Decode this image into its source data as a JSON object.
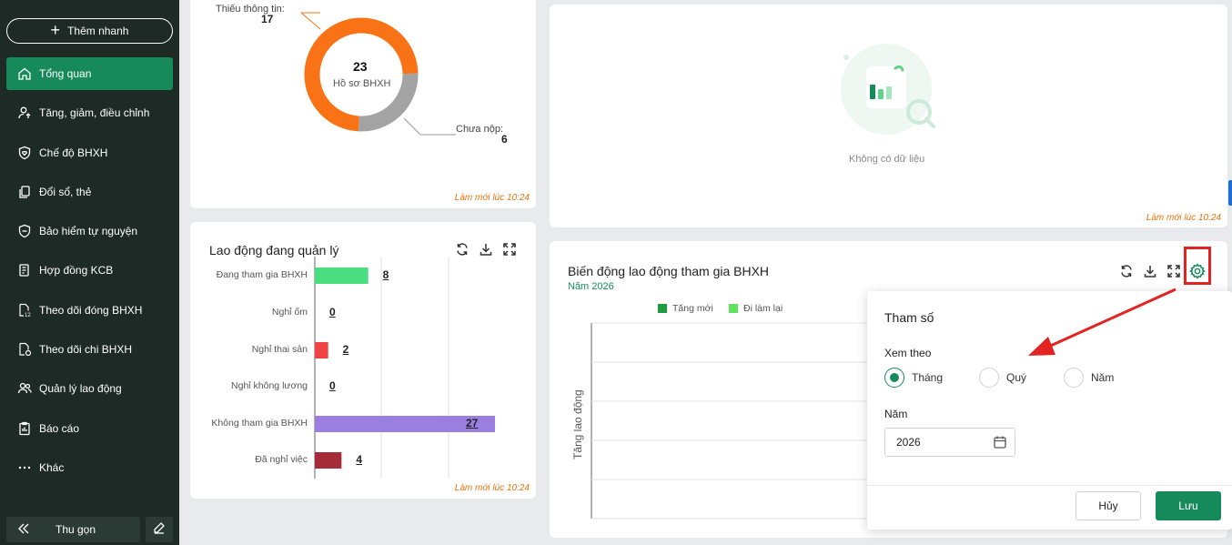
{
  "sidebar": {
    "quick_add": "Thêm nhanh",
    "items": [
      {
        "label": "Tổng quan",
        "icon": "home-icon"
      },
      {
        "label": "Tăng, giảm, điều chỉnh",
        "icon": "user-arrow-icon"
      },
      {
        "label": "Chế độ BHXH",
        "icon": "shield-heart-icon"
      },
      {
        "label": "Đổi sổ, thẻ",
        "icon": "documents-icon"
      },
      {
        "label": "Bảo hiểm tự nguyện",
        "icon": "shield-icon"
      },
      {
        "label": "Hợp đồng KCB",
        "icon": "contract-icon"
      },
      {
        "label": "Theo dõi đóng BHXH",
        "icon": "document-12-icon"
      },
      {
        "label": "Theo dõi chi BHXH",
        "icon": "document-money-icon"
      },
      {
        "label": "Quản lý lao động",
        "icon": "users-icon"
      },
      {
        "label": "Báo cáo",
        "icon": "report-icon"
      },
      {
        "label": "Khác",
        "icon": "more-icon"
      }
    ],
    "collapse": "Thu gọn"
  },
  "donut_card": {
    "center_value": "23",
    "center_label": "Hồ sơ BHXH",
    "label_missing": "Thiếu thông tin:",
    "value_missing": "17",
    "label_not_submitted": "Chưa nộp:",
    "value_not_submitted": "6",
    "refreshed": "Làm mới lúc 10:24",
    "colors": {
      "missing": "#f97316",
      "not_submitted": "#a3a3a3"
    },
    "values": [
      17,
      6
    ]
  },
  "empty_card": {
    "text": "Không có dữ liệu",
    "refreshed": "Làm mới lúc 10:24"
  },
  "labor_card": {
    "title": "Lao động đang quản lý",
    "refreshed": "Làm mới lúc 10:24",
    "chart_data": {
      "type": "bar",
      "orientation": "horizontal",
      "categories": [
        "Đang tham gia BHXH",
        "Nghỉ ốm",
        "Nghỉ thai sản",
        "Nghỉ không lương",
        "Không tham gia BHXH",
        "Đã nghỉ việc"
      ],
      "values": [
        8,
        0,
        2,
        0,
        27,
        4
      ],
      "value_labels": [
        "8",
        "0",
        "2",
        "0",
        "27",
        "4"
      ],
      "colors": [
        "#4ade80",
        "#22c55e",
        "#ef4444",
        "#9ca3af",
        "#9b7fe0",
        "#a62c3a"
      ],
      "xlim": [
        0,
        30
      ],
      "grid": true
    }
  },
  "trend_card": {
    "title": "Biến động lao động tham gia BHXH",
    "subtitle": "Năm 2026",
    "legend": [
      {
        "label": "Tăng mới",
        "color": "#1f9d3a"
      },
      {
        "label": "Đi làm lại",
        "color": "#5fe35f"
      }
    ],
    "y_title": "Tăng lao động",
    "chart_data": {
      "type": "bar",
      "series": [
        {
          "name": "Tăng mới",
          "values": []
        },
        {
          "name": "Đi làm lại",
          "values": []
        }
      ],
      "ylabel": "Tăng lao động",
      "grid": true
    }
  },
  "params_popup": {
    "title": "Tham số",
    "view_by_label": "Xem theo",
    "options": [
      "Tháng",
      "Quý",
      "Năm"
    ],
    "selected": "Tháng",
    "year_label": "Năm",
    "year_value": "2026",
    "cancel": "Hủy",
    "save": "Lưu"
  },
  "colors": {
    "sidebar_bg": "#1e2a26",
    "accent": "#178a5c",
    "refresh_text": "#e8730f",
    "annotation": "#e32222"
  }
}
